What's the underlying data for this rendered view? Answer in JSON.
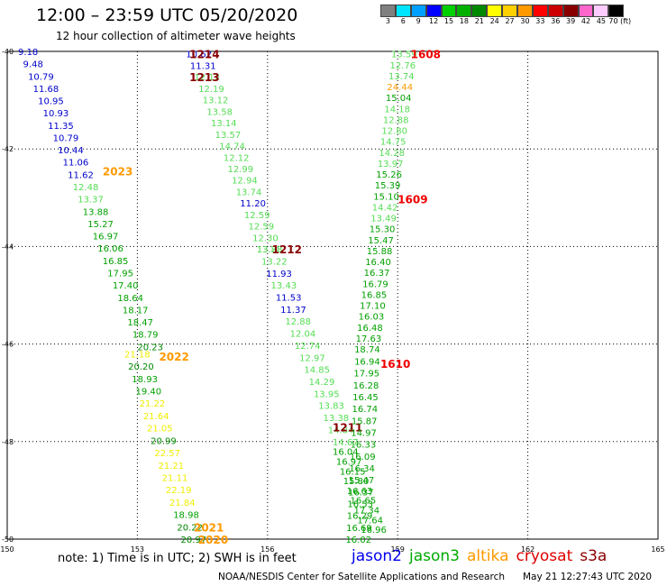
{
  "header": {
    "title": "12:00 – 23:59 UTC 05/20/2020",
    "subtitle": "12 hour collection of altimeter wave heights"
  },
  "colorbar": {
    "labels": [
      "3",
      "6",
      "9",
      "12",
      "15",
      "18",
      "21",
      "24",
      "27",
      "30",
      "33",
      "36",
      "39",
      "42",
      "45",
      "70 (ft)"
    ],
    "colors": [
      "#808080",
      "#00e5ff",
      "#00a0ff",
      "#0000ff",
      "#00d000",
      "#00b000",
      "#008800",
      "#ffff00",
      "#ffd000",
      "#ff9900",
      "#ff0000",
      "#cc0000",
      "#880000",
      "#ff66cc",
      "#ffccff",
      "#000000"
    ]
  },
  "footer": {
    "note": "note: 1) Time is in UTC; 2) SWH is in feet",
    "satellites": [
      {
        "name": "jason2",
        "color": "#0000ee"
      },
      {
        "name": "jason3",
        "color": "#00aa00"
      },
      {
        "name": "altika",
        "color": "#ff9900"
      },
      {
        "name": "cryosat",
        "color": "#dd0000"
      },
      {
        "name": "s3a",
        "color": "#8b0000"
      }
    ],
    "credit_left": "NOAA/NESDIS Center for Satellite Applications and Research",
    "credit_right": "May 21 12:27:43 UTC 2020"
  },
  "chart_data": {
    "type": "scatter",
    "title": "12 hour collection of altimeter wave heights",
    "xlim": [
      150,
      165
    ],
    "ylim": [
      -50,
      -40
    ],
    "x_ticks": [
      150,
      153,
      156,
      159,
      162,
      165
    ],
    "y_ticks": [
      -40,
      -42,
      -44,
      -46,
      -48,
      -50
    ],
    "x_tick_labels": [
      "150",
      "153",
      "156",
      "159",
      "162",
      "165"
    ],
    "y_tick_labels": [
      "-40",
      "-42",
      "-44",
      "-46",
      "-48",
      "-50"
    ],
    "grid": "dotted",
    "colors": {
      "b": "#0000cc",
      "lg": "#55dd55",
      "g": "#00a000",
      "dg": "#008800",
      "y": "#eeee00",
      "o": "#ff9900",
      "r": "#ee0000",
      "m": "#880000"
    },
    "tracks": [
      {
        "label": "2023",
        "label_color": "o",
        "label_x": 152.2,
        "label_y": -42.45,
        "start": [
          150.25,
          -40.0
        ],
        "end": [
          153.0,
          -46.05
        ],
        "points": [
          [
            "9.18",
            "b"
          ],
          [
            "9.48",
            "b"
          ],
          [
            "10.79",
            "b"
          ],
          [
            "11.68",
            "b"
          ],
          [
            "10.95",
            "b"
          ],
          [
            "10.93",
            "b"
          ],
          [
            "11.35",
            "b"
          ],
          [
            "10.79",
            "b"
          ],
          [
            "10.44",
            "b"
          ],
          [
            "11.06",
            "b"
          ],
          [
            "11.62",
            "b"
          ],
          [
            "12.48",
            "lg"
          ],
          [
            "13.37",
            "lg"
          ],
          [
            "13.88",
            "g"
          ],
          [
            "15.27",
            "g"
          ],
          [
            "16.97",
            "g"
          ],
          [
            "16.06",
            "g"
          ],
          [
            "16.85",
            "g"
          ],
          [
            "17.95",
            "g"
          ],
          [
            "17.40",
            "g"
          ],
          [
            "18.64",
            "g"
          ],
          [
            "18.17",
            "g"
          ],
          [
            "18.47",
            "g"
          ],
          [
            "18.79",
            "g"
          ],
          [
            "20.23",
            "dg"
          ]
        ]
      },
      {
        "label": "2022",
        "label_color": "o",
        "label_x": 153.5,
        "label_y": -46.25,
        "start": [
          152.7,
          -46.2
        ],
        "end": [
          154.0,
          -50.0
        ],
        "points": [
          [
            "21.18",
            "y"
          ],
          [
            "20.20",
            "dg"
          ],
          [
            "18.93",
            "g"
          ],
          [
            "19.40",
            "g"
          ],
          [
            "21.22",
            "y"
          ],
          [
            "21.64",
            "y"
          ],
          [
            "21.05",
            "y"
          ],
          [
            "20.99",
            "dg"
          ],
          [
            "22.57",
            "y"
          ],
          [
            "21.21",
            "y"
          ],
          [
            "21.11",
            "y"
          ],
          [
            "22.19",
            "y"
          ],
          [
            "21.84",
            "y"
          ],
          [
            "18.98",
            "g"
          ],
          [
            "20.22",
            "dg"
          ],
          [
            "20.97",
            "dg"
          ]
        ]
      },
      {
        "label": "2021",
        "label_color": "o",
        "label_x": 154.3,
        "label_y": -49.75,
        "start": [
          0,
          0
        ],
        "end": [
          0,
          0
        ],
        "points": []
      },
      {
        "label": "2020",
        "label_color": "o",
        "label_x": 154.4,
        "label_y": -50.0,
        "start": [
          0,
          0
        ],
        "end": [
          0,
          0
        ],
        "points": []
      },
      {
        "label": "1214",
        "label_color": "m",
        "label_x": 154.2,
        "label_y": -40.05,
        "start": [
          154.12,
          -40.05
        ],
        "end": [
          155.75,
          -44.05
        ],
        "points": [
          [
            "10.62",
            "b"
          ],
          [
            "11.31",
            "b"
          ],
          [
            "12.12",
            "lg"
          ],
          [
            "12.19",
            "lg"
          ],
          [
            "13.12",
            "lg"
          ],
          [
            "13.58",
            "lg"
          ],
          [
            "13.14",
            "lg"
          ],
          [
            "13.57",
            "lg"
          ],
          [
            "14.74",
            "lg"
          ],
          [
            "12.12",
            "lg"
          ],
          [
            "12.99",
            "lg"
          ],
          [
            "12.94",
            "lg"
          ],
          [
            "13.74",
            "lg"
          ],
          [
            "11.20",
            "b"
          ],
          [
            "12.59",
            "lg"
          ],
          [
            "12.59",
            "lg"
          ],
          [
            "12.30",
            "lg"
          ],
          [
            "13.28",
            "lg"
          ]
        ]
      },
      {
        "label": "1213",
        "label_color": "m",
        "label_x": 154.2,
        "label_y": -40.52,
        "start": [
          0,
          0
        ],
        "end": [
          0,
          0
        ],
        "points": []
      },
      {
        "label": "1212",
        "label_color": "m",
        "label_x": 156.1,
        "label_y": -44.05,
        "start": [
          155.75,
          -44.05
        ],
        "end": [
          157.5,
          -48.0
        ],
        "points": [
          [
            "13.88",
            "lg"
          ],
          [
            "13.22",
            "lg"
          ],
          [
            "11.93",
            "b"
          ],
          [
            "13.43",
            "lg"
          ],
          [
            "11.53",
            "b"
          ],
          [
            "11.37",
            "b"
          ],
          [
            "12.88",
            "lg"
          ],
          [
            "12.04",
            "lg"
          ],
          [
            "12.74",
            "lg"
          ],
          [
            "12.97",
            "lg"
          ],
          [
            "14.85",
            "lg"
          ],
          [
            "14.29",
            "lg"
          ],
          [
            "13.95",
            "lg"
          ],
          [
            "13.83",
            "lg"
          ],
          [
            "13.38",
            "lg"
          ],
          [
            "14.84",
            "lg"
          ],
          [
            "14.67",
            "lg"
          ]
        ]
      },
      {
        "label": "1211",
        "label_color": "m",
        "label_x": 157.5,
        "label_y": -47.7,
        "start": [
          157.5,
          -48.2
        ],
        "end": [
          158.15,
          -49.8
        ],
        "points": [
          [
            "16.04",
            "g"
          ],
          [
            "16.97",
            "g"
          ],
          [
            "16.15",
            "g"
          ],
          [
            "15.80",
            "g"
          ],
          [
            "16.63",
            "g"
          ],
          [
            "16.65",
            "g"
          ],
          [
            "17.34",
            "g"
          ],
          [
            "17.64",
            "g"
          ],
          [
            "16.96",
            "g"
          ]
        ]
      },
      {
        "label": "1608",
        "label_color": "r",
        "label_x": 159.3,
        "label_y": -40.05,
        "start": [
          158.85,
          -40.05
        ],
        "end": [
          158.0,
          -46.1
        ],
        "points": [
          [
            "13.59",
            "lg"
          ],
          [
            "12.76",
            "lg"
          ],
          [
            "13.74",
            "lg"
          ],
          [
            "24.44",
            "o"
          ],
          [
            "15.04",
            "g"
          ],
          [
            "14.18",
            "lg"
          ],
          [
            "12.88",
            "lg"
          ],
          [
            "12.80",
            "lg"
          ],
          [
            "14.75",
            "lg"
          ],
          [
            "14.28",
            "lg"
          ],
          [
            "13.97",
            "lg"
          ],
          [
            "15.26",
            "g"
          ],
          [
            "15.39",
            "g"
          ],
          [
            "15.10",
            "g"
          ],
          [
            "14.42",
            "lg"
          ],
          [
            "13.49",
            "lg"
          ],
          [
            "15.30",
            "g"
          ],
          [
            "15.47",
            "g"
          ],
          [
            "15.88",
            "g"
          ],
          [
            "16.40",
            "g"
          ],
          [
            "16.37",
            "g"
          ],
          [
            "16.79",
            "g"
          ],
          [
            "16.85",
            "g"
          ],
          [
            "17.10",
            "g"
          ],
          [
            "16.03",
            "g"
          ],
          [
            "16.48",
            "g"
          ],
          [
            "17.63",
            "g"
          ],
          [
            "18.74",
            "g"
          ]
        ]
      },
      {
        "label": "1609",
        "label_color": "r",
        "label_x": 159.0,
        "label_y": -43.02,
        "start": [
          0,
          0
        ],
        "end": [
          0,
          0
        ],
        "points": []
      },
      {
        "label": "1610",
        "label_color": "r",
        "label_x": 158.6,
        "label_y": -46.4,
        "start": [
          158.0,
          -46.35
        ],
        "end": [
          157.8,
          -50.0
        ],
        "points": [
          [
            "16.94",
            "g"
          ],
          [
            "17.95",
            "g"
          ],
          [
            "16.28",
            "g"
          ],
          [
            "16.45",
            "g"
          ],
          [
            "16.74",
            "g"
          ],
          [
            "15.87",
            "g"
          ],
          [
            "14.97",
            "g"
          ],
          [
            "16.33",
            "g"
          ],
          [
            "16.09",
            "g"
          ],
          [
            "16.34",
            "g"
          ],
          [
            "15.47",
            "g"
          ],
          [
            "16.37",
            "g"
          ],
          [
            "16.53",
            "g"
          ],
          [
            "16.29",
            "g"
          ],
          [
            "16.69",
            "g"
          ],
          [
            "16.02",
            "g"
          ]
        ]
      }
    ]
  }
}
